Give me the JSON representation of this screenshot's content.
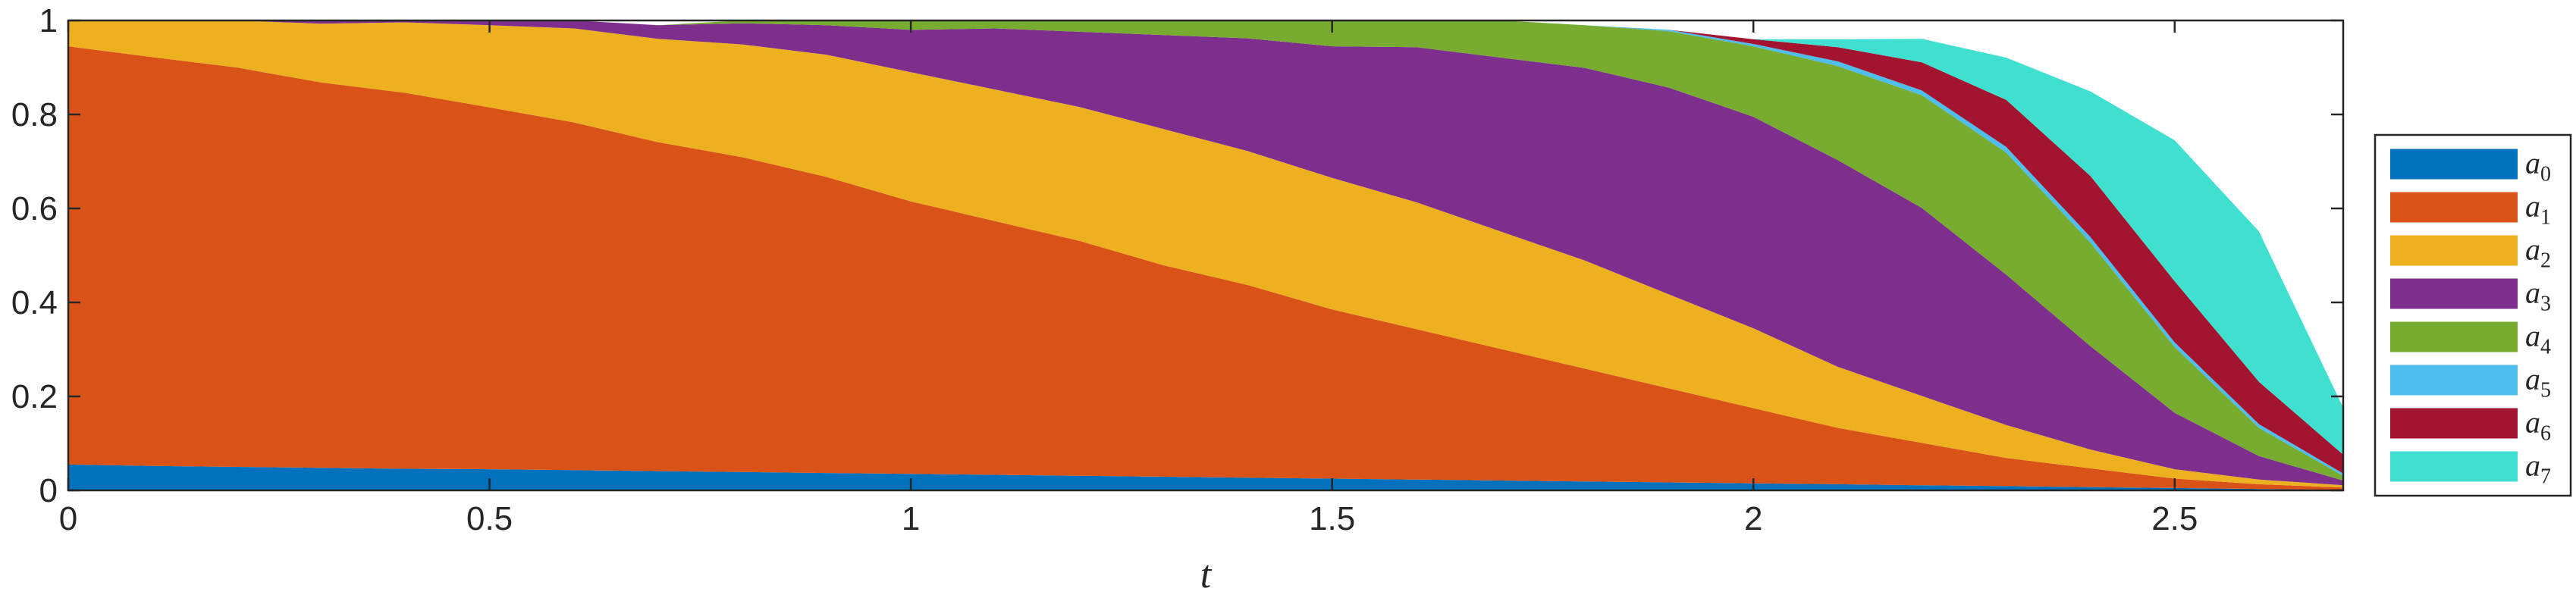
{
  "chart_data": {
    "type": "area",
    "stacked": true,
    "title": "",
    "xlabel": "t",
    "ylabel": "",
    "xlim": [
      0,
      2.7
    ],
    "ylim": [
      0,
      1
    ],
    "xticks": [
      0,
      0.5,
      1,
      1.5,
      2,
      2.5
    ],
    "xtick_labels": [
      "0",
      "0.5",
      "1",
      "1.5",
      "2",
      "2.5"
    ],
    "yticks": [
      0,
      0.2,
      0.4,
      0.6,
      0.8,
      1
    ],
    "ytick_labels": [
      "0",
      "0.2",
      "0.4",
      "0.6",
      "0.8",
      "1"
    ],
    "grid": false,
    "legend_position": "outside-right",
    "x": [
      0,
      0.1,
      0.2,
      0.3,
      0.4,
      0.5,
      0.6,
      0.7,
      0.8,
      0.9,
      1.0,
      1.1,
      1.2,
      1.3,
      1.4,
      1.5,
      1.6,
      1.7,
      1.8,
      1.9,
      2.0,
      2.1,
      2.2,
      2.3,
      2.4,
      2.5,
      2.6,
      2.7
    ],
    "series": [
      {
        "name": "a",
        "subscript": "0",
        "color": "#0072BD",
        "values": [
          0.055,
          0.052,
          0.05,
          0.048,
          0.046,
          0.045,
          0.043,
          0.041,
          0.039,
          0.037,
          0.035,
          0.033,
          0.031,
          0.029,
          0.027,
          0.025,
          0.023,
          0.021,
          0.019,
          0.017,
          0.015,
          0.013,
          0.011,
          0.009,
          0.007,
          0.005,
          0.003,
          0.001
        ]
      },
      {
        "name": "a",
        "subscript": "1",
        "color": "#D95319",
        "values": [
          0.89,
          0.87,
          0.85,
          0.82,
          0.8,
          0.77,
          0.74,
          0.7,
          0.67,
          0.63,
          0.58,
          0.54,
          0.5,
          0.45,
          0.41,
          0.36,
          0.32,
          0.28,
          0.24,
          0.2,
          0.16,
          0.12,
          0.09,
          0.06,
          0.04,
          0.02,
          0.01,
          0.005
        ]
      },
      {
        "name": "a",
        "subscript": "2",
        "color": "#EDB120",
        "values": [
          0.055,
          0.078,
          0.1,
          0.125,
          0.15,
          0.175,
          0.2,
          0.22,
          0.24,
          0.26,
          0.275,
          0.28,
          0.285,
          0.29,
          0.285,
          0.28,
          0.27,
          0.25,
          0.23,
          0.2,
          0.17,
          0.13,
          0.1,
          0.07,
          0.04,
          0.02,
          0.01,
          0.005
        ]
      },
      {
        "name": "a",
        "subscript": "3",
        "color": "#7E2F8E",
        "values": [
          0.0,
          0.0,
          0.0,
          0.007,
          0.004,
          0.01,
          0.017,
          0.029,
          0.045,
          0.063,
          0.09,
          0.13,
          0.16,
          0.2,
          0.24,
          0.28,
          0.33,
          0.37,
          0.41,
          0.44,
          0.45,
          0.44,
          0.4,
          0.32,
          0.22,
          0.12,
          0.05,
          0.01
        ]
      },
      {
        "name": "a",
        "subscript": "4",
        "color": "#77AC30",
        "values": [
          0.0,
          0.0,
          0.0,
          0.0,
          0.0,
          0.0,
          0.0,
          0.0,
          0.006,
          0.01,
          0.02,
          0.017,
          0.024,
          0.031,
          0.038,
          0.055,
          0.057,
          0.079,
          0.091,
          0.12,
          0.15,
          0.2,
          0.24,
          0.26,
          0.22,
          0.14,
          0.06,
          0.01
        ]
      },
      {
        "name": "a",
        "subscript": "5",
        "color": "#4DBEEE",
        "values": [
          0.0,
          0.0,
          0.0,
          0.0,
          0.0,
          0.0,
          0.0,
          0.0,
          0.0,
          0.0,
          0.0,
          0.0,
          0.0,
          0.0,
          0.0,
          0.0,
          0.0,
          0.0,
          0.0,
          0.003,
          0.005,
          0.01,
          0.01,
          0.012,
          0.012,
          0.01,
          0.008,
          0.005
        ]
      },
      {
        "name": "a",
        "subscript": "6",
        "color": "#A2142F",
        "values": [
          0.0,
          0.0,
          0.0,
          0.0,
          0.0,
          0.0,
          0.0,
          0.0,
          0.0,
          0.0,
          0.0,
          0.0,
          0.0,
          0.0,
          0.0,
          0.0,
          0.0,
          0.0,
          0.0,
          0.0,
          0.01,
          0.03,
          0.06,
          0.1,
          0.13,
          0.13,
          0.09,
          0.04
        ]
      },
      {
        "name": "a",
        "subscript": "7",
        "color": "#40E0D0",
        "values": [
          0.0,
          0.0,
          0.0,
          0.0,
          0.0,
          0.0,
          0.0,
          0.0,
          0.0,
          0.0,
          0.0,
          0.0,
          0.0,
          0.0,
          0.0,
          0.0,
          0.0,
          0.0,
          0.0,
          0.0,
          0.0,
          0.017,
          0.05,
          0.09,
          0.18,
          0.3,
          0.32,
          0.1
        ]
      }
    ]
  }
}
